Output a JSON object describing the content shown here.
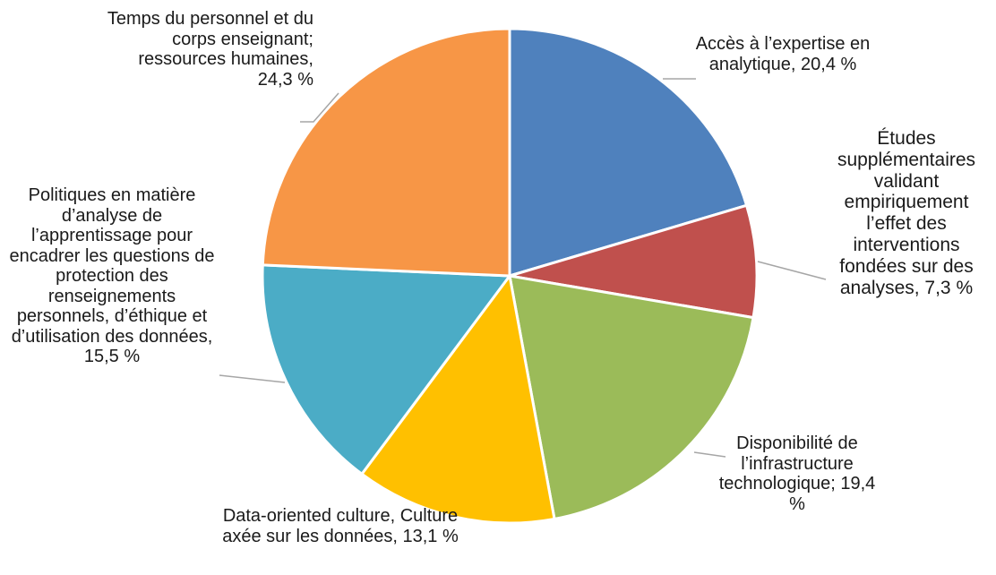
{
  "chart_data": {
    "type": "pie",
    "slices": [
      {
        "label": "Accès à l’expertise en analytique, 20,4 %",
        "value": 20.4,
        "color": "#4f81bd"
      },
      {
        "label": "Études supplémentaires validant empiriquement l’effet des interventions fondées sur des analyses, 7,3 %",
        "value": 7.3,
        "color": "#c0504d"
      },
      {
        "label": "Disponibilité de l’infrastructure technologique; 19,4 %",
        "value": 19.4,
        "color": "#9bbb59"
      },
      {
        "label": "Data-oriented culture, Culture axée sur les données, 13,1 %",
        "value": 13.1,
        "color": "#ffc000"
      },
      {
        "label": "Politiques en matière d’analyse de l’apprentissage pour encadrer les questions de protection des renseignements personnels, d’éthique et d’utilisation des données, 15,5 %",
        "value": 15.5,
        "color": "#4bacc6"
      },
      {
        "label": "Temps du personnel et du corps enseignant; ressources humaines, 24,3 %",
        "value": 24.3,
        "color": "#f79646"
      }
    ]
  }
}
